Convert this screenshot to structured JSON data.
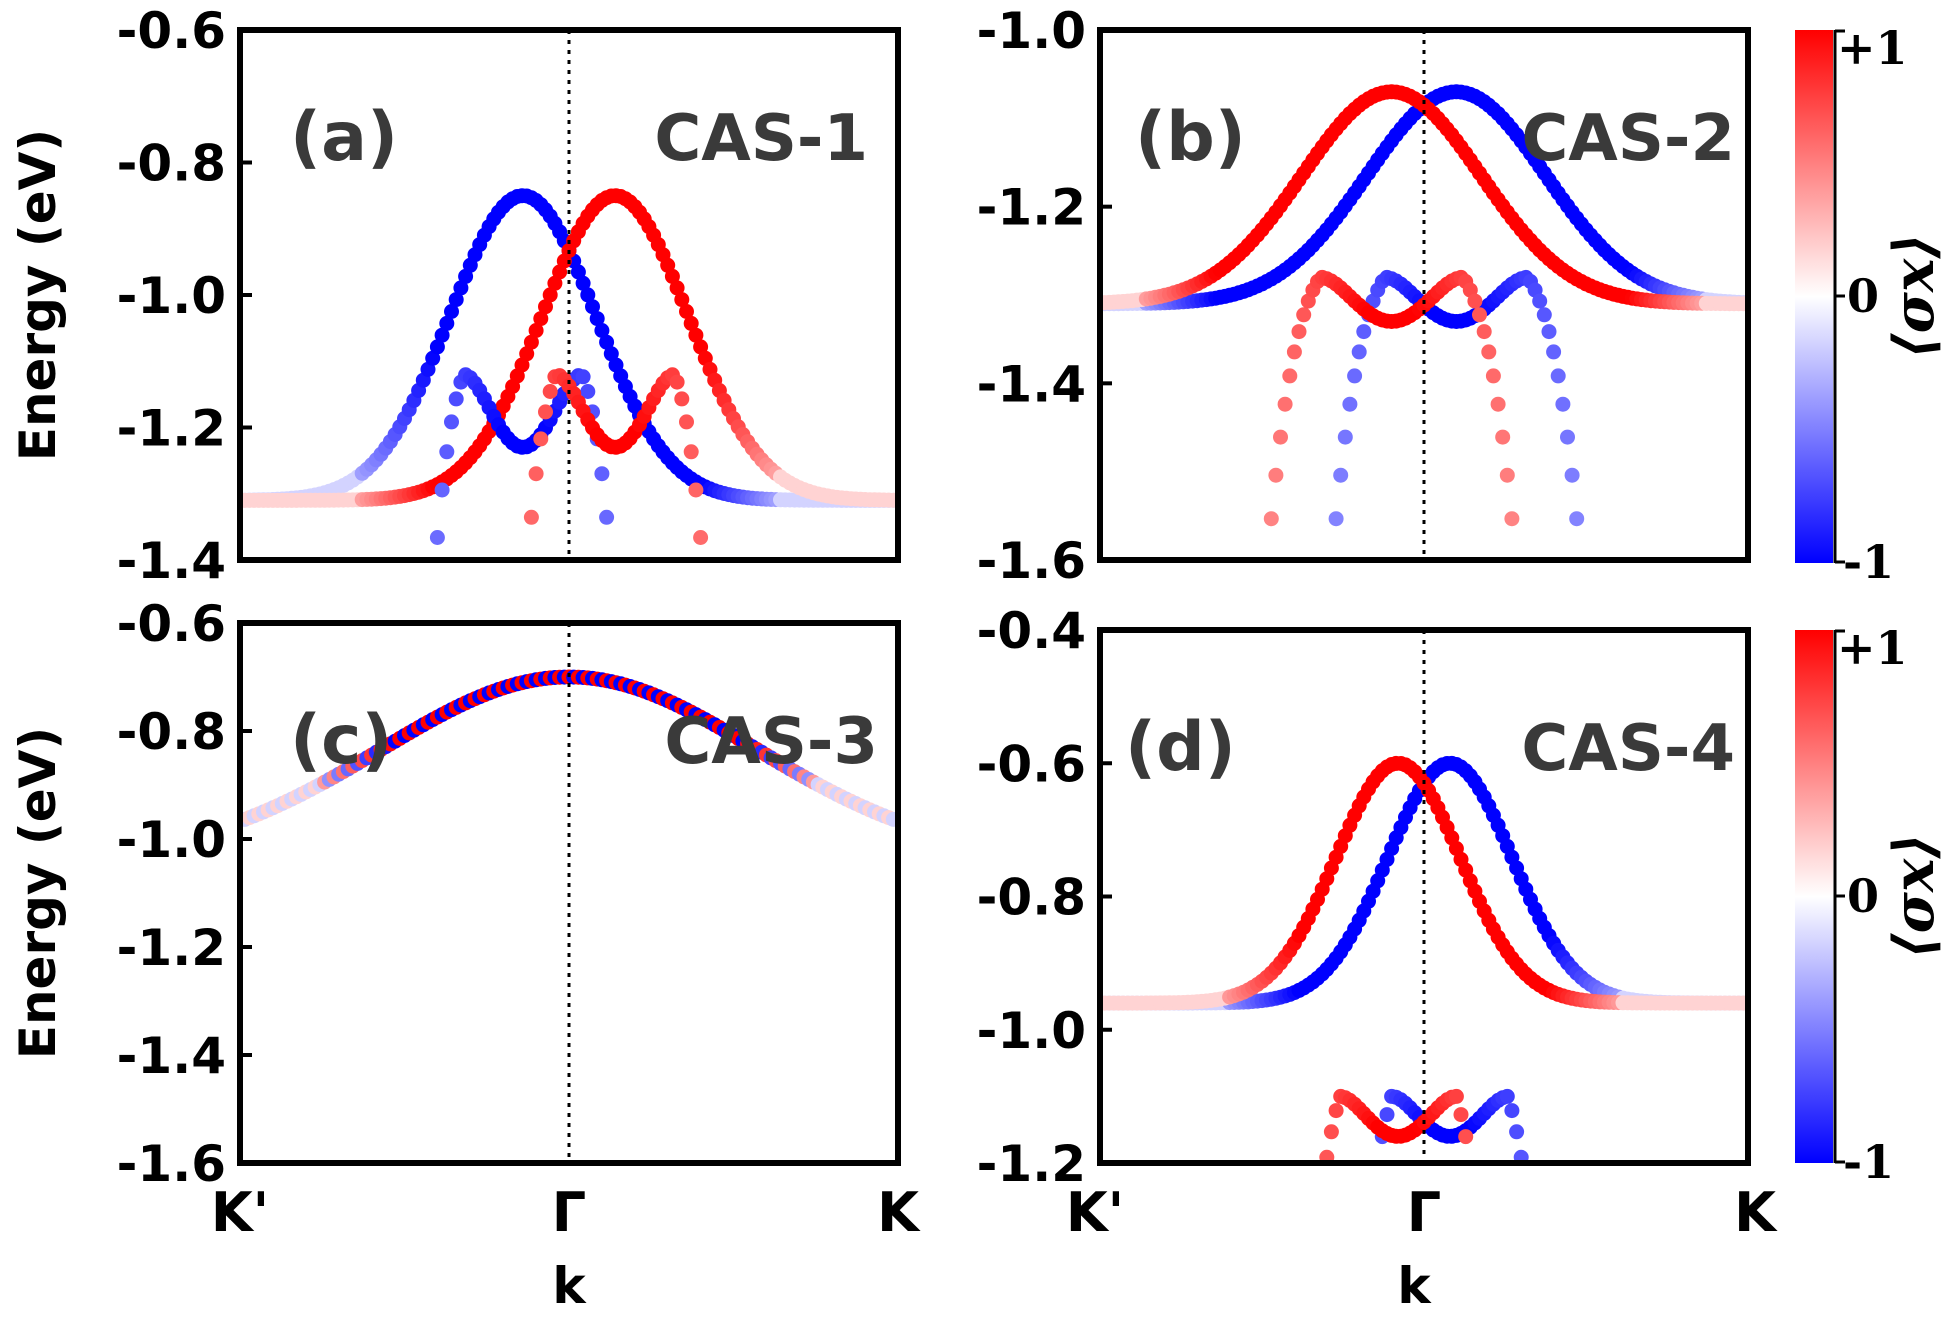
{
  "chart_data": [
    {
      "type": "scatter",
      "panel": "(a)",
      "case": "CAS-1",
      "ylabel": "Energy (eV)",
      "xlabel": "",
      "xticklabels": [
        "K'",
        "Γ",
        "K"
      ],
      "ylim": [
        -1.4,
        -0.6
      ],
      "yticks": [
        -1.4,
        -1.2,
        -1.0,
        -0.8,
        -0.6
      ],
      "yticklabels": [
        "-1.4",
        "-1.2",
        "-1.0",
        "-0.8",
        "-0.6"
      ],
      "color_quantity": "⟨σx⟩",
      "color_range": [
        -1,
        1
      ],
      "bands": [
        {
          "E0": -0.85,
          "w": 0.74,
          "d": 0.46,
          "shift": -0.14,
          "split": 0.33,
          "pol": -1
        },
        {
          "E0": -0.85,
          "w": 0.74,
          "d": 0.46,
          "shift": 0.14,
          "split": 0.33,
          "pol": 1
        },
        {
          "E0": -1.23,
          "type": "wbump",
          "A": 0.11,
          "kb": 0.18,
          "a": 5.5,
          "shift": -0.14,
          "pol": -1
        },
        {
          "E0": -1.23,
          "type": "wbump",
          "A": 0.11,
          "kb": 0.18,
          "a": 5.5,
          "shift": 0.14,
          "pol": 1
        }
      ]
    },
    {
      "type": "scatter",
      "panel": "(b)",
      "case": "CAS-2",
      "ylabel": "",
      "xlabel": "",
      "xticklabels": [
        "",
        "",
        ""
      ],
      "ylim": [
        -1.6,
        -1.0
      ],
      "yticks": [
        -1.6,
        -1.4,
        -1.2,
        -1.0
      ],
      "yticklabels": [
        "-1.6",
        "-1.4",
        "-1.2",
        "-1.0"
      ],
      "color_quantity": "⟨σx⟩",
      "color_range": [
        -1,
        1
      ],
      "bands": [
        {
          "E0": -1.07,
          "w": 0.92,
          "d": 0.24,
          "shift": 0.1,
          "split": 0.56,
          "pol": -1
        },
        {
          "E0": -1.07,
          "w": 0.92,
          "d": 0.24,
          "shift": -0.1,
          "split": 0.56,
          "pol": 1
        },
        {
          "E0": -1.33,
          "type": "wbump",
          "A": 0.05,
          "kb": 0.22,
          "a": 1.9,
          "shift": 0.1,
          "pol": -1
        },
        {
          "E0": -1.33,
          "type": "wbump",
          "A": 0.05,
          "kb": 0.22,
          "a": 1.9,
          "shift": -0.1,
          "pol": 1
        }
      ]
    },
    {
      "type": "scatter",
      "panel": "(c)",
      "case": "CAS-3",
      "ylabel": "Energy (eV)",
      "xlabel": "k",
      "xticklabels": [
        "K'",
        "Γ",
        "K"
      ],
      "ylim": [
        -1.6,
        -0.6
      ],
      "yticks": [
        -1.6,
        -1.4,
        -1.2,
        -1.0,
        -0.8,
        -0.6
      ],
      "yticklabels": [
        "-1.6",
        "-1.4",
        "-1.2",
        "-1.0",
        "-0.8",
        "-0.6"
      ],
      "color_quantity": "⟨σx⟩",
      "color_range": [
        -1,
        1
      ],
      "bands": [
        {
          "E0": -0.7,
          "w": 1.9,
          "d": 0.34,
          "shift": 0.0,
          "split": 0.45,
          "pol": 1,
          "mixed": true
        }
      ]
    },
    {
      "type": "scatter",
      "panel": "(d)",
      "case": "CAS-4",
      "ylabel": "",
      "xlabel": "k",
      "xticklabels": [
        "K'",
        "Γ",
        "K"
      ],
      "ylim": [
        -1.2,
        -0.4
      ],
      "yticks": [
        -1.2,
        -1.0,
        -0.8,
        -0.6,
        -0.4
      ],
      "yticklabels": [
        "-1.2",
        "-1.0",
        "-0.8",
        "-0.6",
        "-0.4"
      ],
      "color_quantity": "⟨σx⟩",
      "color_range": [
        -1,
        1
      ],
      "bands": [
        {
          "E0": -0.6,
          "w": 0.64,
          "d": 0.36,
          "shift": 0.08,
          "split": 0.31,
          "pol": -1
        },
        {
          "E0": -0.6,
          "w": 0.64,
          "d": 0.36,
          "shift": -0.08,
          "split": 0.31,
          "pol": 1
        },
        {
          "E0": -1.16,
          "type": "wbump",
          "A": 0.06,
          "kb": 0.18,
          "a": 8.0,
          "shift": 0.08,
          "pol": -1
        },
        {
          "E0": -1.16,
          "type": "wbump",
          "A": 0.06,
          "kb": 0.18,
          "a": 8.0,
          "shift": -0.08,
          "pol": 1
        }
      ]
    }
  ],
  "colorbar": {
    "max_label": "+1",
    "mid_label": "0",
    "min_label": "-1",
    "title": "⟨σx⟩",
    "color_max": "#ff0000",
    "color_mid": "#ffffff",
    "color_min": "#0000ff"
  },
  "colors": {
    "positive": "#ff0000",
    "negative": "#0000ff",
    "axis": "#000000"
  }
}
